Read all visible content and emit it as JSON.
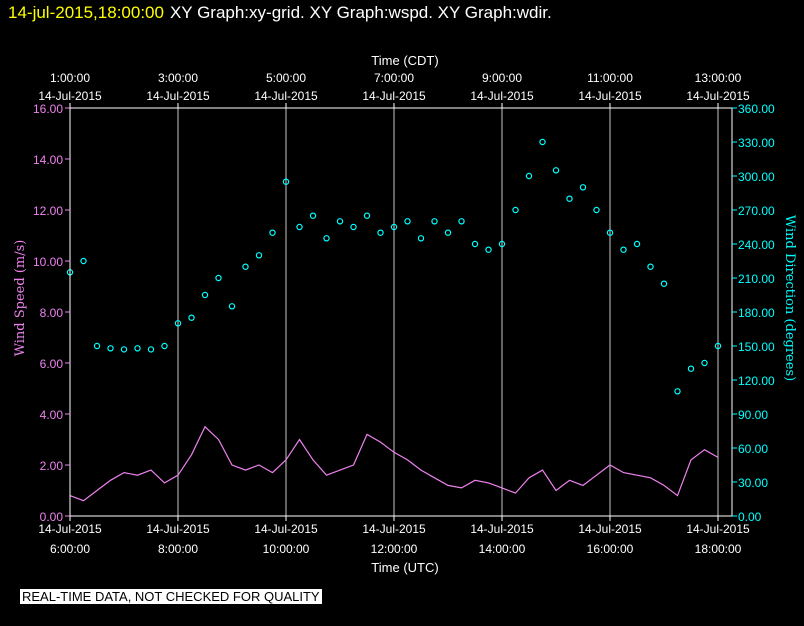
{
  "header": {
    "timestamp": "14-jul-2015,18:00:00",
    "graphs": "XY Graph:xy-grid.  XY Graph:wspd.  XY Graph:wdir."
  },
  "footer": {
    "notice": "REAL-TIME DATA, NOT CHECKED FOR QUALITY"
  },
  "chart_data": {
    "type": "scatter",
    "background": "#000000",
    "top_axis": {
      "title": "Time (CDT)",
      "ticks": [
        {
          "hours": 0,
          "time": "1:00:00",
          "date": "14-Jul-2015"
        },
        {
          "hours": 2,
          "time": "3:00:00",
          "date": "14-Jul-2015"
        },
        {
          "hours": 4,
          "time": "5:00:00",
          "date": "14-Jul-2015"
        },
        {
          "hours": 6,
          "time": "7:00:00",
          "date": "14-Jul-2015"
        },
        {
          "hours": 8,
          "time": "9:00:00",
          "date": "14-Jul-2015"
        },
        {
          "hours": 10,
          "time": "11:00:00",
          "date": "14-Jul-2015"
        },
        {
          "hours": 12,
          "time": "13:00:00",
          "date": "14-Jul-2015"
        }
      ]
    },
    "bottom_axis": {
      "title": "Time (UTC)",
      "range": [
        "06:00",
        "18:00"
      ],
      "ticks": [
        {
          "hours": 0,
          "date": "14-Jul-2015",
          "time": "6:00:00"
        },
        {
          "hours": 2,
          "date": "14-Jul-2015",
          "time": "8:00:00"
        },
        {
          "hours": 4,
          "date": "14-Jul-2015",
          "time": "10:00:00"
        },
        {
          "hours": 6,
          "date": "14-Jul-2015",
          "time": "12:00:00"
        },
        {
          "hours": 8,
          "date": "14-Jul-2015",
          "time": "14:00:00"
        },
        {
          "hours": 10,
          "date": "14-Jul-2015",
          "time": "16:00:00"
        },
        {
          "hours": 12,
          "date": "14-Jul-2015",
          "time": "18:00:00"
        }
      ]
    },
    "left_axis": {
      "title": "Wind Speed (m/s)",
      "ylim": [
        0,
        16
      ],
      "ticks": [
        "0.00",
        "2.00",
        "4.00",
        "6.00",
        "8.00",
        "10.00",
        "12.00",
        "14.00",
        "16.00"
      ],
      "color": "#ee82ee"
    },
    "right_axis": {
      "title": "Wind Direction (degrees)",
      "ylim": [
        0,
        360
      ],
      "ticks": [
        "0.00",
        "30.00",
        "60.00",
        "90.00",
        "120.00",
        "150.00",
        "180.00",
        "210.00",
        "240.00",
        "270.00",
        "300.00",
        "330.00",
        "360.00"
      ],
      "color": "#00ffff"
    },
    "grid": "vertical lines at 2-hour ticks",
    "series": [
      {
        "name": "wspd",
        "style": "line",
        "color": "#ee82ee",
        "axis": "left",
        "x_hours_since_0600_UTC": [
          0,
          0.25,
          0.5,
          0.75,
          1,
          1.25,
          1.5,
          1.75,
          2,
          2.25,
          2.5,
          2.75,
          3,
          3.25,
          3.5,
          3.75,
          4,
          4.25,
          4.5,
          4.75,
          5,
          5.25,
          5.5,
          5.75,
          6,
          6.25,
          6.5,
          6.75,
          7,
          7.25,
          7.5,
          7.75,
          8,
          8.25,
          8.5,
          8.75,
          9,
          9.25,
          9.5,
          9.75,
          10,
          10.25,
          10.5,
          10.75,
          11,
          11.25,
          11.5,
          11.75,
          12
        ],
        "values": [
          0.8,
          0.6,
          1.0,
          1.4,
          1.7,
          1.6,
          1.8,
          1.3,
          1.6,
          2.4,
          3.5,
          3.0,
          2.0,
          1.8,
          2.0,
          1.7,
          2.2,
          3.0,
          2.2,
          1.6,
          1.8,
          2.0,
          3.2,
          2.9,
          2.5,
          2.2,
          1.8,
          1.5,
          1.2,
          1.1,
          1.4,
          1.3,
          1.1,
          0.9,
          1.5,
          1.8,
          1.0,
          1.4,
          1.2,
          1.6,
          2.0,
          1.7,
          1.6,
          1.5,
          1.2,
          0.8,
          2.2,
          2.6,
          2.3
        ]
      },
      {
        "name": "wdir",
        "style": "points",
        "color": "#00ffff",
        "axis": "right",
        "x_hours_since_0600_UTC": [
          0,
          0.25,
          0.5,
          0.75,
          1,
          1.25,
          1.5,
          1.75,
          2,
          2.25,
          2.5,
          2.75,
          3,
          3.25,
          3.5,
          3.75,
          4,
          4.25,
          4.5,
          4.75,
          5,
          5.25,
          5.5,
          5.75,
          6,
          6.25,
          6.5,
          6.75,
          7,
          7.25,
          7.5,
          7.75,
          8,
          8.25,
          8.5,
          8.75,
          9,
          9.25,
          9.5,
          9.75,
          10,
          10.25,
          10.5,
          10.75,
          11,
          11.25,
          11.5,
          11.75,
          12
        ],
        "values": [
          215,
          225,
          150,
          148,
          147,
          148,
          147,
          150,
          170,
          175,
          195,
          210,
          185,
          220,
          230,
          250,
          295,
          255,
          265,
          245,
          260,
          255,
          265,
          250,
          255,
          260,
          245,
          260,
          250,
          260,
          240,
          235,
          240,
          270,
          300,
          330,
          305,
          280,
          290,
          270,
          250,
          235,
          240,
          220,
          205,
          110,
          130,
          135,
          150
        ]
      }
    ]
  }
}
